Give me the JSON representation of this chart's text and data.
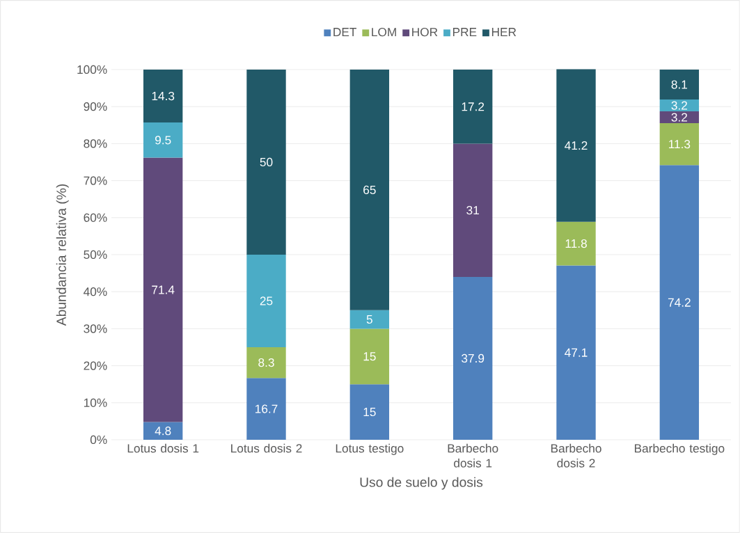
{
  "chart_data": {
    "type": "bar",
    "stacked": true,
    "xlabel": "Uso de suelo y dosis",
    "ylabel": "Abundancia relativa (%)",
    "categories": [
      "Lotus dosis 1",
      "Lotus dosis 2",
      "Lotus testigo",
      "Barbecho dosis 1",
      "Barbecho dosis 2",
      "Barbecho testigo"
    ],
    "series": [
      {
        "name": "DET",
        "color": "#4f81bd",
        "values": [
          4.8,
          16.7,
          15,
          44,
          47.1,
          74.2
        ],
        "value_labels": [
          "4.8",
          "16.7",
          "15",
          null,
          "47.1",
          "74.2"
        ]
      },
      {
        "name": "LOM",
        "color": "#9bbb59",
        "values": [
          null,
          8.3,
          15,
          null,
          11.8,
          11.3
        ],
        "value_labels": [
          null,
          "8.3",
          "15",
          null,
          "11.8",
          "11.3"
        ]
      },
      {
        "name": "HOR",
        "color": "#604a7b",
        "values": [
          71.4,
          null,
          null,
          36,
          null,
          3.2
        ],
        "value_labels": [
          "71.4",
          null,
          null,
          null,
          null,
          "3.2"
        ]
      },
      {
        "name": "PRE",
        "color": "#4bacc6",
        "values": [
          9.5,
          25,
          5,
          null,
          null,
          3.2
        ],
        "value_labels": [
          "9.5",
          "25",
          "5",
          null,
          null,
          "3.2"
        ]
      },
      {
        "name": "HER",
        "color": "#215968",
        "values": [
          14.3,
          50,
          65,
          20,
          41.2,
          8.1
        ],
        "value_labels": [
          "14.3",
          "50",
          "65",
          null,
          "41.2",
          "8.1"
        ]
      }
    ],
    "ylim": [
      0,
      100
    ],
    "yticks": [
      {
        "value": 0,
        "label": "0%"
      },
      {
        "value": 10,
        "label": "10%"
      },
      {
        "value": 20,
        "label": "20%"
      },
      {
        "value": 30,
        "label": "30%"
      },
      {
        "value": 40,
        "label": "40%"
      },
      {
        "value": 50,
        "label": "50%"
      },
      {
        "value": 60,
        "label": "60%"
      },
      {
        "value": 70,
        "label": "70%"
      },
      {
        "value": 80,
        "label": "80%"
      },
      {
        "value": 90,
        "label": "90%"
      },
      {
        "value": 100,
        "label": "100%"
      }
    ],
    "annotations": [
      "37.9",
      "31",
      "17.2"
    ],
    "grid": "y",
    "legend": "top"
  }
}
